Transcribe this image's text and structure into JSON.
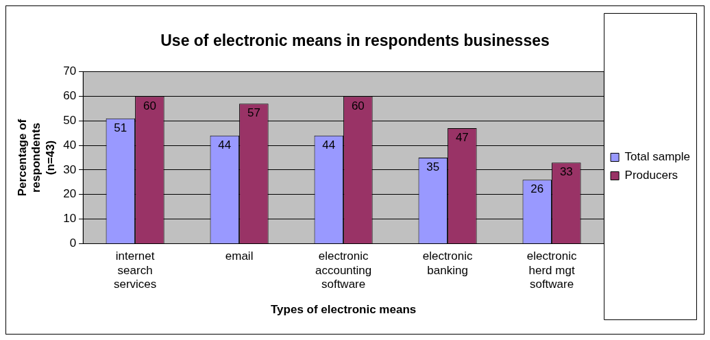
{
  "chart_data": {
    "type": "bar",
    "title": "Use of electronic means in respondents businesses",
    "xlabel": "Types of electronic means",
    "ylabel": "Percentage of respondents (n=43)",
    "categories": [
      "internet search services",
      "email",
      "electronic accounting software",
      "electronic banking",
      "electronic herd mgt software"
    ],
    "series": [
      {
        "name": "Total sample",
        "color": "#9999ff",
        "values": [
          51,
          44,
          44,
          35,
          26
        ]
      },
      {
        "name": "Producers",
        "color": "#993366",
        "values": [
          60,
          57,
          60,
          47,
          33
        ]
      }
    ],
    "ylim": [
      0,
      70
    ],
    "yticks": [
      0,
      10,
      20,
      30,
      40,
      50,
      60,
      70
    ],
    "grid": "y",
    "legend": "right",
    "data_labels": true
  }
}
